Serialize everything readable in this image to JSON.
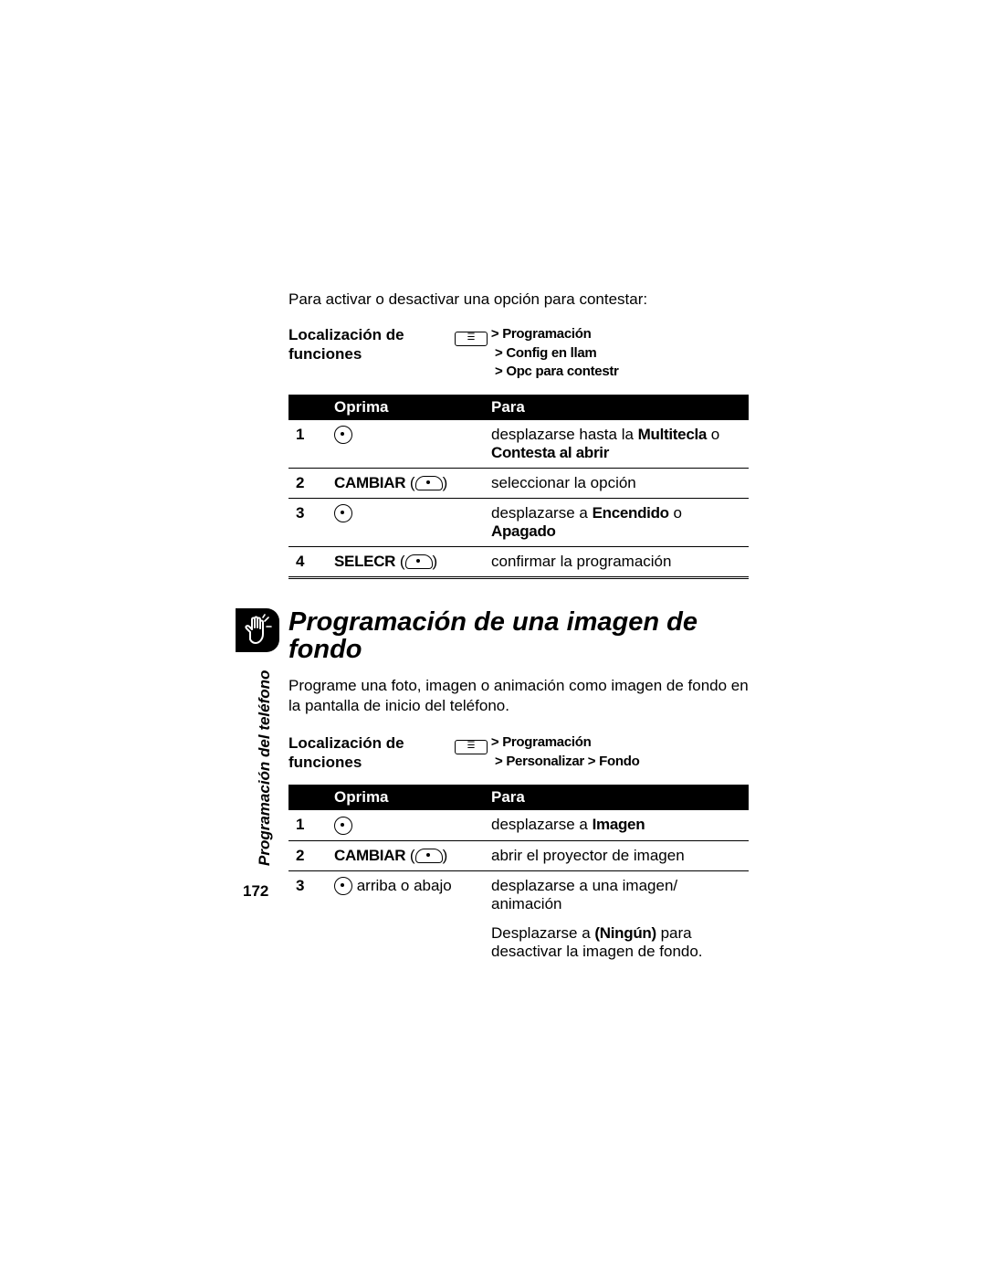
{
  "intro": "Para activar o desactivar una opción para contestar:",
  "loc1": {
    "label": "Localización de funciones",
    "menu_symbol": "☰",
    "line1_suffix": " > Programación",
    "line2": "> Config en llam",
    "line3": "> Opc para contestr"
  },
  "table1": {
    "head_oprima": "Oprima",
    "head_para": "Para",
    "rows": [
      {
        "n": "1",
        "press_type": "nav",
        "press_text": "",
        "para_pre": "desplazarse hasta la ",
        "para_bold1": "Multitecla",
        "para_mid": " o ",
        "para_bold2": "Contesta al abrir",
        "para_post": ""
      },
      {
        "n": "2",
        "press_type": "label_soft",
        "press_text": "CAMBIAR",
        "para_pre": "seleccionar la opción",
        "para_bold1": "",
        "para_mid": "",
        "para_bold2": "",
        "para_post": ""
      },
      {
        "n": "3",
        "press_type": "nav",
        "press_text": "",
        "para_pre": "desplazarse a ",
        "para_bold1": "Encendido",
        "para_mid": " o ",
        "para_bold2": "Apagado",
        "para_post": ""
      },
      {
        "n": "4",
        "press_type": "label_soft",
        "press_text": "SELECR",
        "para_pre": "confirmar la programación",
        "para_bold1": "",
        "para_mid": "",
        "para_bold2": "",
        "para_post": ""
      }
    ]
  },
  "section_title": "Programación de una imagen de fondo",
  "section_body": "Programe una foto, imagen o animación como imagen de fondo en la pantalla de inicio del teléfono.",
  "loc2": {
    "label": "Localización de funciones",
    "menu_symbol": "☰",
    "line1_suffix": " > Programación",
    "line2": "> Personalizar > Fondo"
  },
  "table2": {
    "head_oprima": "Oprima",
    "head_para": "Para",
    "rows": [
      {
        "n": "1",
        "press_type": "nav",
        "press_text": "",
        "para_pre": "desplazarse a ",
        "para_bold1": "Imagen",
        "para_mid": "",
        "para_bold2": "",
        "para_post": ""
      },
      {
        "n": "2",
        "press_type": "label_soft",
        "press_text": "CAMBIAR",
        "para_pre": "abrir el proyector de imagen",
        "para_bold1": "",
        "para_mid": "",
        "para_bold2": "",
        "para_post": ""
      },
      {
        "n": "3",
        "press_type": "nav_text",
        "press_text": " arriba o abajo",
        "para_pre": "desplazarse a una imagen/ animación",
        "para_bold1": "",
        "para_mid": "",
        "para_bold2": "",
        "para_post": "",
        "extra_pre": "Desplazarse a ",
        "extra_bold": "(Ningún)",
        "extra_post": " para desactivar la imagen de fondo."
      }
    ]
  },
  "side_label": "Programación del teléfono",
  "page_number": "172"
}
